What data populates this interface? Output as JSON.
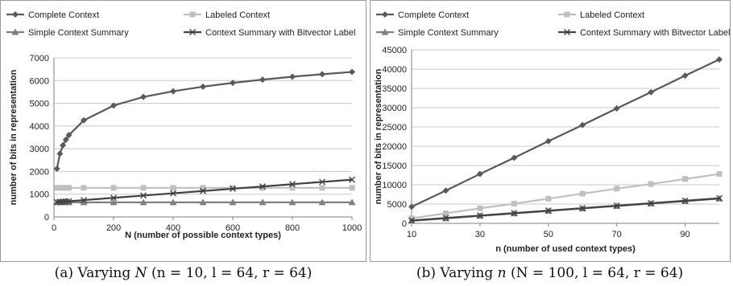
{
  "captions": [
    {
      "label": "(a) Varying",
      "var": "N",
      "params": "(n = 10, l = 64, r = 64)"
    },
    {
      "label": "(b) Varying",
      "var": "n",
      "params": "(N = 100, l = 64, r = 64)"
    }
  ],
  "chart_data": [
    {
      "type": "line",
      "xlabel": "N (number of possible context types)",
      "ylabel": "number of bits in representation",
      "xlim": [
        0,
        1000
      ],
      "ylim": [
        0,
        7000
      ],
      "xticks": [
        0,
        200,
        400,
        600,
        800,
        1000
      ],
      "yticks": [
        0,
        1000,
        2000,
        3000,
        4000,
        5000,
        6000,
        7000
      ],
      "legend": "top, two columns",
      "grid": "horizontal",
      "series": [
        {
          "name": "Complete Context",
          "color": "#595959",
          "marker": "diamond",
          "x": [
            10,
            20,
            30,
            40,
            50,
            100,
            200,
            300,
            400,
            500,
            600,
            700,
            800,
            900,
            1000
          ],
          "y": [
            2120,
            2780,
            3150,
            3400,
            3600,
            4250,
            4900,
            5280,
            5530,
            5730,
            5900,
            6040,
            6170,
            6280,
            6380
          ]
        },
        {
          "name": "Labeled Context",
          "color": "#bfbfbf",
          "marker": "square",
          "x": [
            10,
            20,
            30,
            40,
            50,
            100,
            200,
            300,
            400,
            500,
            600,
            700,
            800,
            900,
            1000
          ],
          "y": [
            1280,
            1280,
            1280,
            1280,
            1280,
            1280,
            1280,
            1280,
            1280,
            1280,
            1280,
            1280,
            1280,
            1280,
            1280
          ]
        },
        {
          "name": "Simple Context Summary",
          "color": "#7f7f7f",
          "marker": "triangle",
          "x": [
            10,
            20,
            30,
            40,
            50,
            100,
            200,
            300,
            400,
            500,
            600,
            700,
            800,
            900,
            1000
          ],
          "y": [
            640,
            640,
            640,
            640,
            640,
            640,
            640,
            640,
            640,
            640,
            640,
            640,
            640,
            640,
            640
          ]
        },
        {
          "name": "Context Summary with Bitvector Label",
          "color": "#404040",
          "marker": "x",
          "x": [
            10,
            20,
            30,
            40,
            50,
            100,
            200,
            300,
            400,
            500,
            600,
            700,
            800,
            900,
            1000
          ],
          "y": [
            650,
            660,
            670,
            680,
            690,
            740,
            840,
            940,
            1040,
            1140,
            1240,
            1340,
            1440,
            1540,
            1640
          ]
        }
      ]
    },
    {
      "type": "line",
      "xlabel": "n (number of used context types)",
      "ylabel": "number of bits in representation",
      "xlim": [
        10,
        100
      ],
      "ylim": [
        0,
        45000
      ],
      "xticks": [
        10,
        30,
        50,
        70,
        90
      ],
      "yticks": [
        0,
        5000,
        10000,
        15000,
        20000,
        25000,
        30000,
        35000,
        40000,
        45000
      ],
      "legend": "top, two columns",
      "grid": "horizontal",
      "series": [
        {
          "name": "Complete Context",
          "color": "#595959",
          "marker": "diamond",
          "x": [
            10,
            20,
            30,
            40,
            50,
            60,
            70,
            80,
            90,
            100
          ],
          "y": [
            4300,
            8500,
            12800,
            17000,
            21300,
            25500,
            29800,
            34000,
            38300,
            42500
          ]
        },
        {
          "name": "Labeled Context",
          "color": "#bfbfbf",
          "marker": "square",
          "x": [
            10,
            20,
            30,
            40,
            50,
            60,
            70,
            80,
            90,
            100
          ],
          "y": [
            1300,
            2600,
            3900,
            5100,
            6400,
            7700,
            9000,
            10200,
            11500,
            12800
          ]
        },
        {
          "name": "Simple Context Summary",
          "color": "#7f7f7f",
          "marker": "triangle",
          "x": [
            10,
            20,
            30,
            40,
            50,
            60,
            70,
            80,
            90,
            100
          ],
          "y": [
            640,
            1280,
            1920,
            2560,
            3200,
            3840,
            4480,
            5120,
            5760,
            6400
          ]
        },
        {
          "name": "Context Summary with Bitvector Label",
          "color": "#404040",
          "marker": "x",
          "x": [
            10,
            20,
            30,
            40,
            50,
            60,
            70,
            80,
            90,
            100
          ],
          "y": [
            740,
            1380,
            2020,
            2660,
            3300,
            3940,
            4580,
            5220,
            5860,
            6500
          ]
        }
      ]
    }
  ]
}
